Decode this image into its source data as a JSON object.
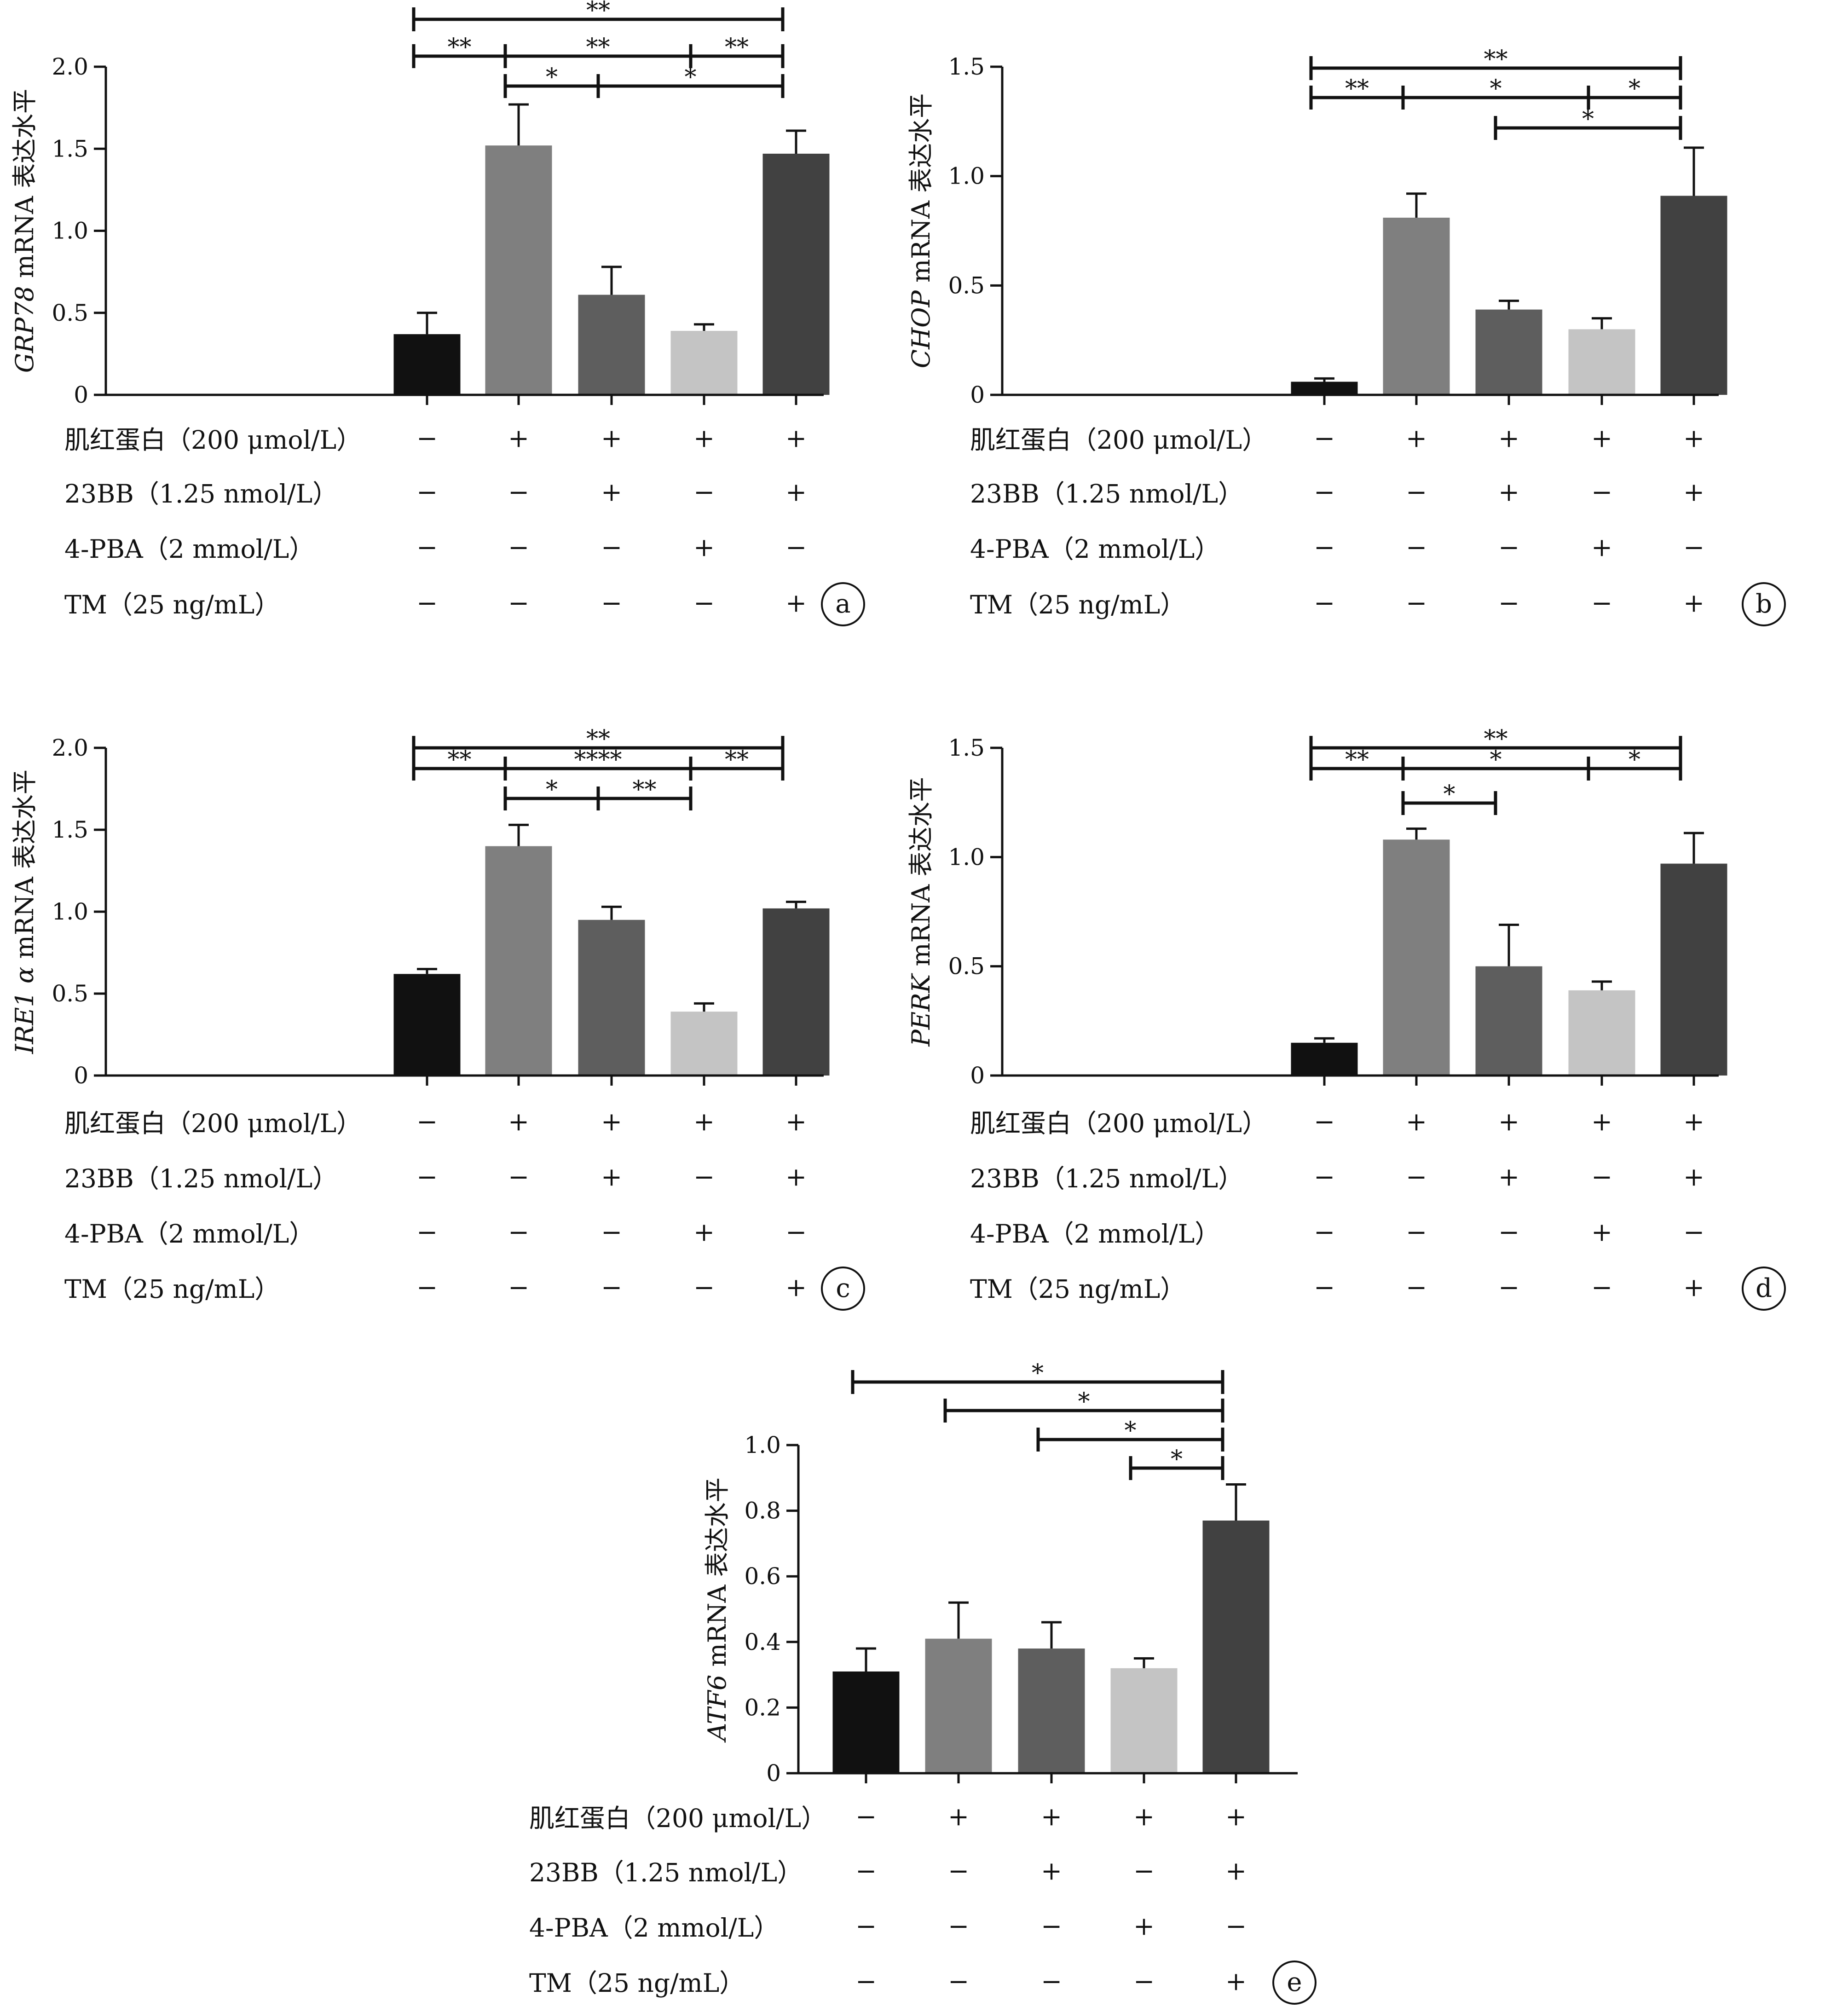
{
  "treatments": {
    "labels": [
      "肌红蛋白（200 μmol/L）",
      "23BB（1.25 nmol/L）",
      "4-PBA（2 mmol/L）",
      "TM（25 ng/mL）"
    ],
    "signs": [
      [
        "−",
        "+",
        "+",
        "+",
        "+"
      ],
      [
        "−",
        "−",
        "+",
        "−",
        "+"
      ],
      [
        "−",
        "−",
        "−",
        "+",
        "−"
      ],
      [
        "−",
        "−",
        "−",
        "−",
        "+"
      ]
    ]
  },
  "colors": {
    "bars": [
      "#111111",
      "#7f7f7f",
      "#5e5e5e",
      "#c4c4c4",
      "#414141"
    ],
    "axis": "#111111"
  },
  "chart_data": [
    {
      "type": "bar",
      "panel_letter": "a",
      "ylabel": {
        "gene": "GRP78",
        "rest": " mRNA 表达水平"
      },
      "ylim": [
        0,
        2.0
      ],
      "yticks": [
        0,
        0.5,
        1.0,
        1.5,
        2.0
      ],
      "ytick_labels": [
        "0",
        "0.5",
        "1.0",
        "1.5",
        "2.0"
      ],
      "values": [
        0.37,
        1.52,
        0.61,
        0.39,
        1.47
      ],
      "errors": [
        0.13,
        0.25,
        0.17,
        0.04,
        0.14
      ],
      "significance": [
        {
          "from": 0,
          "to": 4,
          "tier": 0,
          "label": "**"
        },
        {
          "from": 0,
          "to": 1,
          "tier": 1,
          "label": "**"
        },
        {
          "from": 1,
          "to": 3,
          "tier": 1,
          "label": "**"
        },
        {
          "from": 3,
          "to": 4,
          "tier": 1,
          "label": "**"
        },
        {
          "from": 1,
          "to": 2,
          "tier": 2,
          "label": "*"
        },
        {
          "from": 2,
          "to": 4,
          "tier": 2,
          "label": "*"
        }
      ]
    },
    {
      "type": "bar",
      "panel_letter": "b",
      "ylabel": {
        "gene": "CHOP",
        "rest": " mRNA 表达水平"
      },
      "ylim": [
        0,
        1.5
      ],
      "yticks": [
        0,
        0.5,
        1.0,
        1.5
      ],
      "ytick_labels": [
        "0",
        "0.5",
        "1.0",
        "1.5"
      ],
      "values": [
        0.06,
        0.81,
        0.39,
        0.3,
        0.91
      ],
      "errors": [
        0.015,
        0.11,
        0.04,
        0.05,
        0.22
      ],
      "significance": [
        {
          "from": 0,
          "to": 4,
          "tier": 0,
          "label": "**"
        },
        {
          "from": 0,
          "to": 1,
          "tier": 1,
          "label": "**"
        },
        {
          "from": 1,
          "to": 3,
          "tier": 1,
          "label": "*"
        },
        {
          "from": 3,
          "to": 4,
          "tier": 1,
          "label": "*"
        },
        {
          "from": 2,
          "to": 4,
          "tier": 2,
          "label": "*"
        }
      ]
    },
    {
      "type": "bar",
      "panel_letter": "c",
      "ylabel": {
        "gene": "IRE1 α",
        "rest": " mRNA 表达水平"
      },
      "ylim": [
        0,
        2.0
      ],
      "yticks": [
        0,
        0.5,
        1.0,
        1.5,
        2.0
      ],
      "ytick_labels": [
        "0",
        "0.5",
        "1.0",
        "1.5",
        "2.0"
      ],
      "values": [
        0.62,
        1.4,
        0.95,
        0.39,
        1.02
      ],
      "errors": [
        0.03,
        0.13,
        0.08,
        0.05,
        0.04
      ],
      "significance": [
        {
          "from": 0,
          "to": 4,
          "tier": 0,
          "label": "**"
        },
        {
          "from": 0,
          "to": 1,
          "tier": 1,
          "label": "**"
        },
        {
          "from": 1,
          "to": 3,
          "tier": 1,
          "label": "****"
        },
        {
          "from": 3,
          "to": 4,
          "tier": 1,
          "label": "**"
        },
        {
          "from": 1,
          "to": 2,
          "tier": 2,
          "label": "*"
        },
        {
          "from": 2,
          "to": 3,
          "tier": 2,
          "label": "**"
        }
      ]
    },
    {
      "type": "bar",
      "panel_letter": "d",
      "ylabel": {
        "gene": "PERK",
        "rest": " mRNA 表达水平"
      },
      "ylim": [
        0,
        1.5
      ],
      "yticks": [
        0,
        0.5,
        1.0,
        1.5
      ],
      "ytick_labels": [
        "0",
        "0.5",
        "1.0",
        "1.5"
      ],
      "values": [
        0.15,
        1.08,
        0.5,
        0.39,
        0.97
      ],
      "errors": [
        0.02,
        0.05,
        0.19,
        0.04,
        0.14
      ],
      "significance": [
        {
          "from": 0,
          "to": 4,
          "tier": 0,
          "label": "**"
        },
        {
          "from": 0,
          "to": 1,
          "tier": 1,
          "label": "**"
        },
        {
          "from": 1,
          "to": 3,
          "tier": 1,
          "label": "*"
        },
        {
          "from": 3,
          "to": 4,
          "tier": 1,
          "label": "*"
        },
        {
          "from": 1,
          "to": 2,
          "tier": 2,
          "label": "*"
        }
      ]
    },
    {
      "type": "bar",
      "panel_letter": "e",
      "ylabel": {
        "gene": "ATF6",
        "rest": " mRNA 表达水平"
      },
      "ylim": [
        0,
        1.0
      ],
      "yticks": [
        0,
        0.2,
        0.4,
        0.6,
        0.8,
        1.0
      ],
      "ytick_labels": [
        "0",
        "0.2",
        "0.4",
        "0.6",
        "0.8",
        "1.0"
      ],
      "values": [
        0.31,
        0.41,
        0.38,
        0.32,
        0.77
      ],
      "errors": [
        0.07,
        0.11,
        0.08,
        0.03,
        0.11
      ],
      "significance": [
        {
          "from": 0,
          "to": 4,
          "tier": 0,
          "label": "*"
        },
        {
          "from": 1,
          "to": 4,
          "tier": 1,
          "label": "*"
        },
        {
          "from": 2,
          "to": 4,
          "tier": 2,
          "label": "*"
        },
        {
          "from": 3,
          "to": 4,
          "tier": 3,
          "label": "*"
        }
      ]
    }
  ]
}
